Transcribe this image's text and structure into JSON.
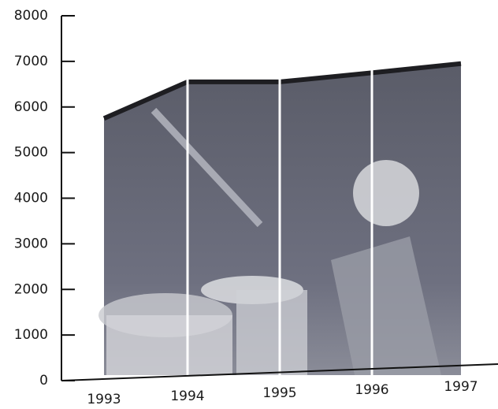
{
  "chart_data": {
    "type": "area",
    "categories": [
      "1993",
      "1994",
      "1995",
      "1996",
      "1997"
    ],
    "values": [
      5750,
      6550,
      6550,
      6750,
      6950
    ],
    "color": "#6b6d78",
    "line_color": "#1e1e22",
    "ylim": [
      0,
      8000
    ],
    "yticks": [
      0,
      1000,
      2000,
      3000,
      4000,
      5000,
      6000,
      7000,
      8000
    ]
  }
}
